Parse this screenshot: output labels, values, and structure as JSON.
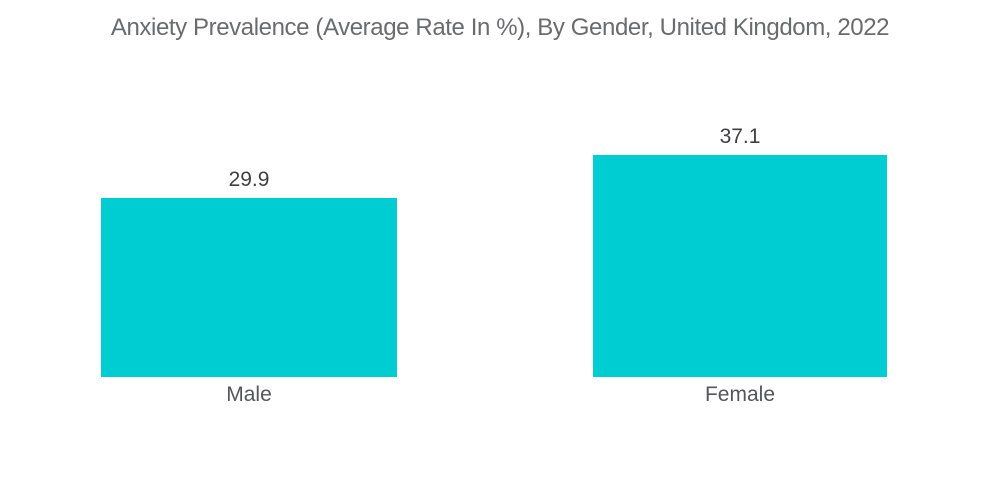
{
  "chart_data": {
    "type": "bar",
    "title": "Anxiety Prevalence (Average Rate In %), By Gender, United Kingdom, 2022",
    "categories": [
      "Male",
      "Female"
    ],
    "values": [
      29.9,
      37.1
    ],
    "unit": "%",
    "xlabel": "",
    "ylabel": "",
    "ylim": [
      0,
      40
    ],
    "grid": false,
    "axes_visible": false,
    "legend": "none",
    "colors": {
      "bar": "#00CDD1",
      "title_text": "#6A6B6D",
      "value_text": "#3F4044",
      "category_text": "#55565A",
      "background": "#FFFFFF"
    }
  }
}
